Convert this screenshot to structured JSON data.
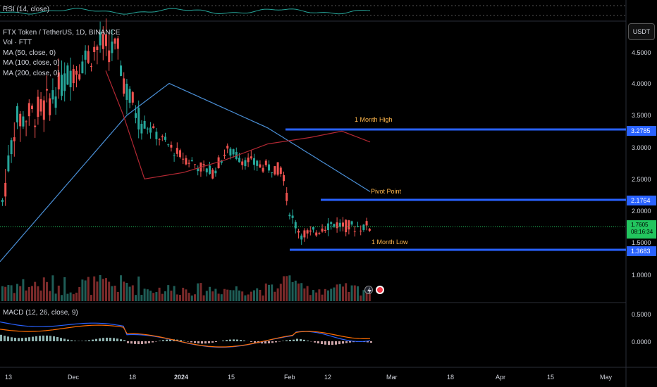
{
  "rsi": {
    "label": "RSI (14, close)"
  },
  "legend": {
    "symbol": "FTX Token / TetherUS, 1D, BINANCE",
    "volume": "Vol · FTT",
    "ma50": "MA (50, close, 0)",
    "ma100": "MA (100, close, 0)",
    "ma200": "MA (200, close, 0)"
  },
  "macd": {
    "label": "MACD (12, 26, close, 9)"
  },
  "currency_button": "USDT",
  "price_axis": {
    "labels": [
      "4.5000",
      "4.0000",
      "3.5000",
      "3.0000",
      "2.5000",
      "2.0000",
      "1.5000",
      "1.0000"
    ],
    "macd_labels": [
      "0.5000",
      "0.0000"
    ]
  },
  "levels": {
    "high_label": "1 Month High",
    "high_value": "3.2785",
    "pivot_label": "Pivot Point",
    "pivot_value": "2.1764",
    "low_label": "1 Month Low",
    "low_value": "1.3683",
    "current_price": "1.7605",
    "countdown": "08:16:34"
  },
  "time_axis": [
    "13",
    "Dec",
    "18",
    "2024",
    "15",
    "Feb",
    "12",
    "Mar",
    "18",
    "Apr",
    "15",
    "May"
  ],
  "colors": {
    "bull": "#26a69a",
    "bear": "#ef5350",
    "ma_blue": "#2962ff",
    "ma_red": "#b22833",
    "ma_light_blue": "#4a8fd6",
    "level_line": "#2962ff",
    "level_text": "#ffb74d",
    "current": "#22c55e"
  },
  "icons": [
    "lightning-icon",
    "dividends-icon"
  ]
}
